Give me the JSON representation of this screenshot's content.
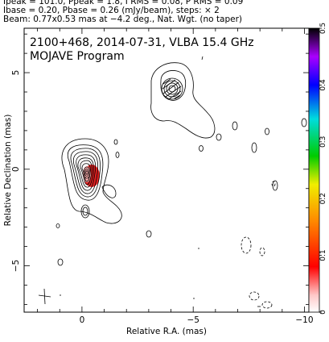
{
  "header": {
    "line1": "Ipeak = 101.0, Ppeak = 1.8, I RMS = 0.08, P RMS = 0.09",
    "line2": "Ibase = 0.20, Pbase = 0.26 (mJy/beam), steps: × 2",
    "line3": "Beam: 0.77x0.53 mas at −4.2 deg., Nat. Wgt. (no taper)"
  },
  "chart_data": {
    "type": "contour",
    "title_line1": "2100+468, 2014-07-31, VLBA 15.4 GHz",
    "title_line2": "MOJAVE Program",
    "xlabel": "Relative R.A. (mas)",
    "ylabel": "Relative Declination (mas)",
    "xlim": [
      2.6,
      -10.2
    ],
    "ylim": [
      -7.4,
      7.3
    ],
    "x_ticks": [
      0,
      -5,
      -10
    ],
    "x_tick_labels": [
      "0",
      "−5",
      "−10"
    ],
    "y_ticks": [
      -5,
      0,
      5
    ],
    "y_tick_labels": [
      "−5",
      "0",
      "5"
    ],
    "colorbar": {
      "range": [
        0,
        0.5
      ],
      "ticks": [
        0,
        0.1,
        0.2,
        0.3,
        0.4,
        0.5
      ],
      "tick_labels": [
        "0",
        "0.1",
        "0.2",
        "0.3",
        "0.4",
        "0.5"
      ]
    },
    "components": [
      {
        "name": "core",
        "x": 0.0,
        "y": 0.0,
        "contour_levels": 10
      },
      {
        "name": "jet-knot",
        "x": -4.0,
        "y": 3.9,
        "contour_levels": 5
      }
    ],
    "polarization_peak_color": "#e02020"
  }
}
